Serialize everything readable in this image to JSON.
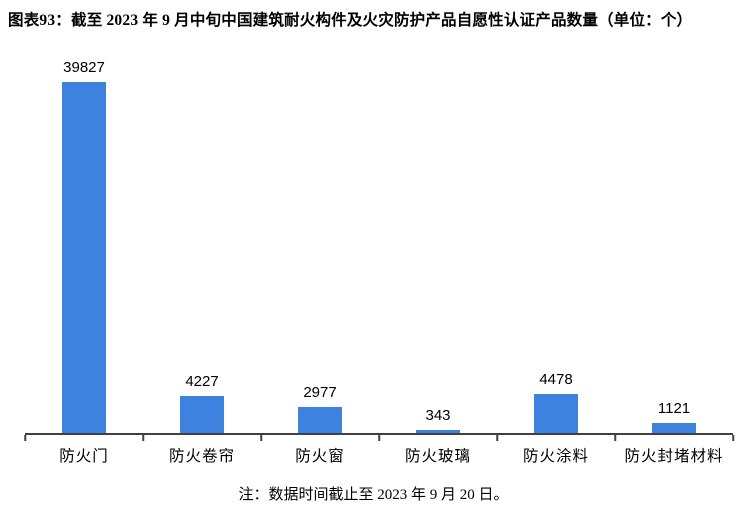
{
  "page": {
    "title": "图表93：截至 2023 年 9 月中旬中国建筑耐火构件及火灾防护产品自愿性认证产品数量（单位：个）",
    "note": "注：数据时间截止至 2023 年 9 月 20 日。"
  },
  "colors": {
    "bar": "#3E82DF",
    "axis": "#404040",
    "text": "#000000"
  },
  "chart_data": {
    "type": "bar",
    "title": "图表93：截至 2023 年 9 月中旬中国建筑耐火构件及火灾防护产品自愿性认证产品数量（单位：个）",
    "categories": [
      "防火门",
      "防火卷帘",
      "防火窗",
      "防火玻璃",
      "防火涂料",
      "防火封堵材料"
    ],
    "values": [
      39827,
      4227,
      2977,
      343,
      4478,
      1121
    ],
    "data_labels": [
      39827,
      4227,
      2977,
      343,
      4478,
      1121
    ],
    "xlabel": "",
    "ylabel": "",
    "ylim": [
      0,
      39827
    ],
    "grid": false,
    "legend": false,
    "note": "注：数据时间截止至 2023 年 9 月 20 日。"
  }
}
